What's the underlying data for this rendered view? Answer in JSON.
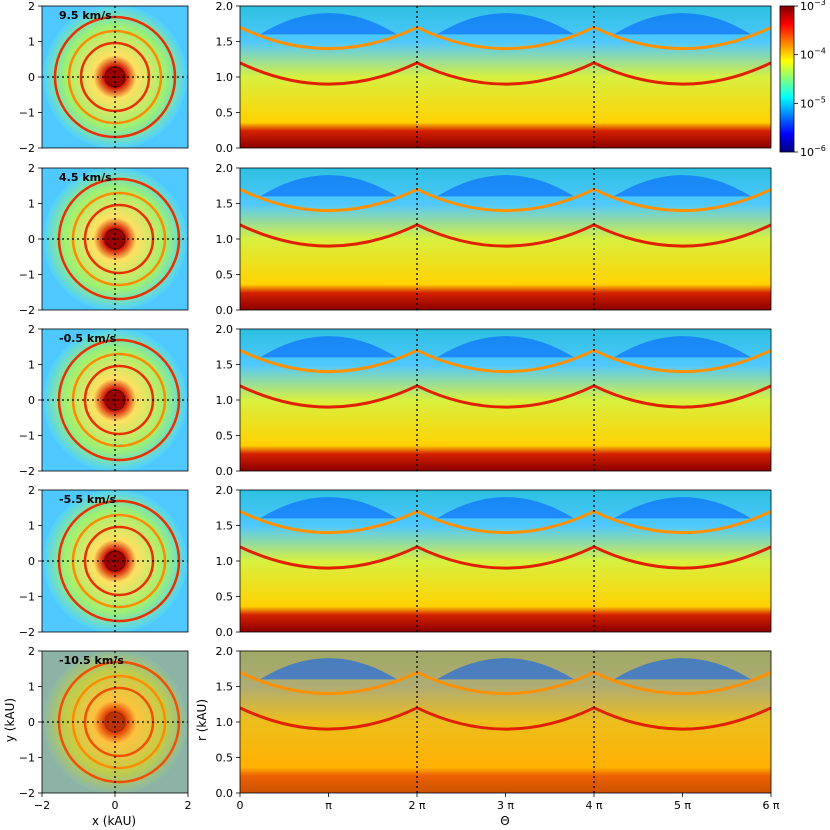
{
  "chart_data": [
    {
      "type": "heatmap",
      "description_key": "left column of maps (x-y slices)",
      "xlabel": "x (kAU)",
      "ylabel": "y (kAU)",
      "xlim": [
        -2,
        2
      ],
      "ylim": [
        -2,
        2
      ],
      "xticks": [
        "−2",
        "0",
        "2"
      ],
      "yticks": [
        "2",
        "1",
        "0",
        "−1",
        "−2"
      ],
      "panels": [
        {
          "label": "9.5 km/s",
          "velocity": 9.5
        },
        {
          "label": "4.5 km/s",
          "velocity": 4.5
        },
        {
          "label": "-0.5 km/s",
          "velocity": -0.5
        },
        {
          "label": "-5.5 km/s",
          "velocity": -5.5
        },
        {
          "label": "-10.5 km/s",
          "velocity": -10.5
        }
      ],
      "crosshair": {
        "x": 0,
        "y": 0,
        "style": "dotted"
      }
    },
    {
      "type": "heatmap",
      "description_key": "right column of maps (polar unwrapped r-theta)",
      "xlabel": "Θ",
      "ylabel": "r (kAU)",
      "xlim": [
        0,
        6
      ],
      "ylim": [
        0,
        2
      ],
      "xticks": [
        "0",
        "π",
        "2 π",
        "3 π",
        "4 π",
        "5 π",
        "6 π"
      ],
      "yticks": [
        "2.0",
        "1.5",
        "1.0",
        "0.5",
        "0.0"
      ],
      "vlines": [
        2,
        4
      ],
      "panels": [
        {
          "velocity": 9.5
        },
        {
          "velocity": 4.5
        },
        {
          "velocity": -0.5
        },
        {
          "velocity": -5.5
        },
        {
          "velocity": -10.5
        }
      ]
    },
    {
      "type": "colorbar",
      "scale": "log",
      "range": [
        1e-06,
        0.001
      ],
      "ticks": [
        {
          "base": "10",
          "exp": "−3"
        },
        {
          "base": "10",
          "exp": "−4"
        },
        {
          "base": "10",
          "exp": "−5"
        },
        {
          "base": "10",
          "exp": "−6"
        }
      ],
      "colormap": [
        "#00007f",
        "#0000ff",
        "#007fff",
        "#00ffff",
        "#7fff7f",
        "#ffff00",
        "#ff7f00",
        "#ff0000",
        "#7f0000"
      ]
    }
  ]
}
